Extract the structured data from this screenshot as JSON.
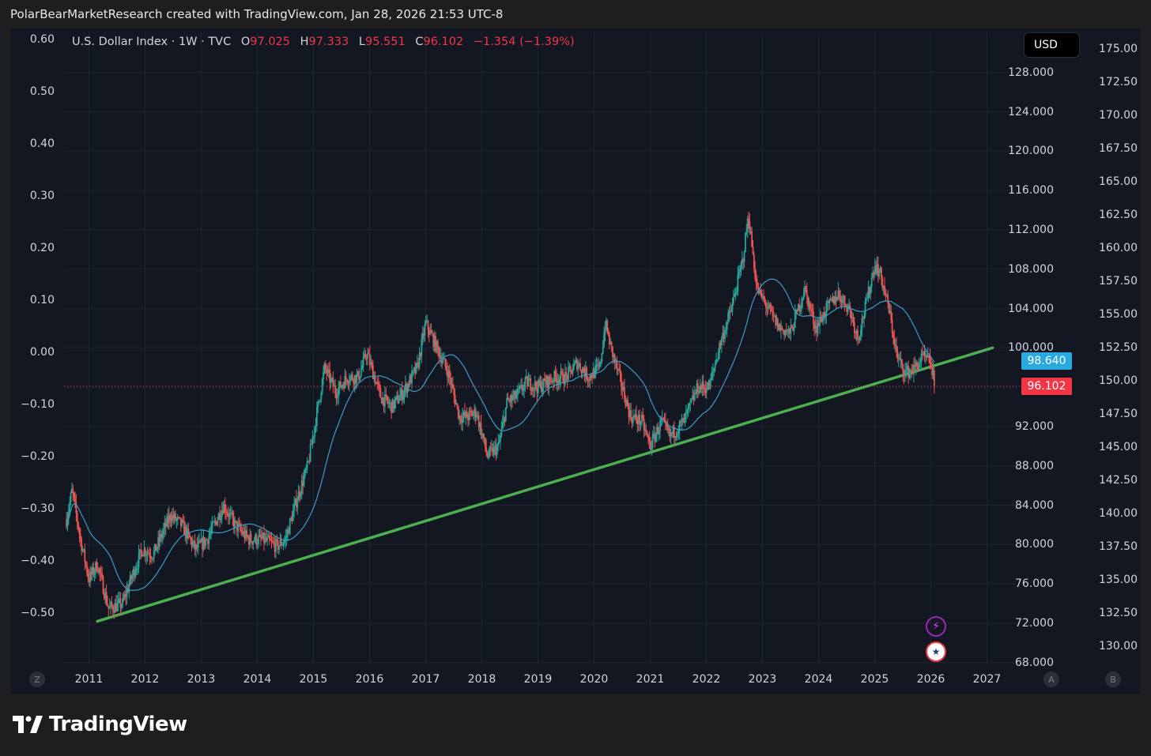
{
  "header": {
    "text": "PolarBearMarketResearch created with TradingView.com, Jan 28, 2026 21:53 UTC-8"
  },
  "legend": {
    "symbol": "U.S. Dollar Index · 1W · TVC",
    "open_label": "O",
    "open": "97.025",
    "high_label": "H",
    "high": "97.333",
    "low_label": "L",
    "low": "95.551",
    "close_label": "C",
    "close": "96.102",
    "change": "−1.354 (−1.39%)"
  },
  "currency_button": "USD",
  "axis_left": {
    "labels": [
      "0.60",
      "0.50",
      "0.40",
      "0.30",
      "0.20",
      "0.10",
      "0.00",
      "−0.10",
      "−0.20",
      "−0.30",
      "−0.40",
      "−0.50"
    ]
  },
  "axis_price": {
    "labels": [
      "128.000",
      "124.000",
      "120.000",
      "116.000",
      "112.000",
      "108.000",
      "104.000",
      "100.000",
      "92.000",
      "88.000",
      "84.000",
      "80.000",
      "76.000",
      "72.000",
      "68.000"
    ]
  },
  "axis_right": {
    "labels": [
      "175.00",
      "172.50",
      "170.00",
      "167.50",
      "165.00",
      "162.50",
      "160.00",
      "157.50",
      "155.00",
      "152.50",
      "150.00",
      "147.50",
      "145.00",
      "142.50",
      "140.00",
      "137.50",
      "135.00",
      "132.50",
      "130.00"
    ]
  },
  "axis_x": {
    "labels": [
      "2011",
      "2012",
      "2013",
      "2014",
      "2015",
      "2016",
      "2017",
      "2018",
      "2019",
      "2020",
      "2021",
      "2022",
      "2023",
      "2024",
      "2025",
      "2026",
      "2027"
    ]
  },
  "price_tags": {
    "ma_value": "98.640",
    "last_price": "96.102"
  },
  "corner_buttons": {
    "left": "Z",
    "scale_a": "A",
    "scale_b": "B"
  },
  "footer": {
    "brand": "TradingView"
  },
  "colors": {
    "up": "#26a69a",
    "down": "#ef5350",
    "ma": "#3c9cc7",
    "trend": "#4caf50",
    "ma_tag": "#29a9e0",
    "price_tag": "#f23645"
  },
  "chart_data": {
    "type": "candlestick",
    "title": "U.S. Dollar Index · 1W · TVC",
    "timeframe": "1W",
    "x_range": [
      2010.6,
      2027.4
    ],
    "ylim": [
      67.5,
      131.5
    ],
    "last_close": 96.102,
    "ma_last": 98.64,
    "anchors": [
      [
        2010.6,
        82.5
      ],
      [
        2010.7,
        85.5
      ],
      [
        2010.85,
        80.5
      ],
      [
        2011.0,
        76.5
      ],
      [
        2011.15,
        78.0
      ],
      [
        2011.35,
        73.5
      ],
      [
        2011.6,
        74.0
      ],
      [
        2011.75,
        76.5
      ],
      [
        2011.95,
        79.5
      ],
      [
        2012.15,
        79.0
      ],
      [
        2012.45,
        83.0
      ],
      [
        2012.65,
        82.0
      ],
      [
        2012.9,
        79.5
      ],
      [
        2013.1,
        80.5
      ],
      [
        2013.4,
        84.0
      ],
      [
        2013.6,
        82.0
      ],
      [
        2013.85,
        80.5
      ],
      [
        2014.1,
        80.5
      ],
      [
        2014.35,
        79.8
      ],
      [
        2014.5,
        80.5
      ],
      [
        2014.7,
        84.5
      ],
      [
        2014.9,
        88.0
      ],
      [
        2015.05,
        93.0
      ],
      [
        2015.2,
        98.0
      ],
      [
        2015.4,
        95.5
      ],
      [
        2015.6,
        97.0
      ],
      [
        2015.8,
        97.0
      ],
      [
        2015.95,
        99.5
      ],
      [
        2016.2,
        95.0
      ],
      [
        2016.4,
        94.0
      ],
      [
        2016.6,
        95.5
      ],
      [
        2016.85,
        98.0
      ],
      [
        2017.0,
        102.5
      ],
      [
        2017.2,
        100.0
      ],
      [
        2017.4,
        97.5
      ],
      [
        2017.6,
        93.0
      ],
      [
        2017.75,
        93.0
      ],
      [
        2017.9,
        93.5
      ],
      [
        2018.1,
        89.0
      ],
      [
        2018.3,
        90.0
      ],
      [
        2018.45,
        94.5
      ],
      [
        2018.6,
        95.0
      ],
      [
        2018.8,
        96.5
      ],
      [
        2019.0,
        96.0
      ],
      [
        2019.3,
        97.0
      ],
      [
        2019.5,
        97.0
      ],
      [
        2019.7,
        98.5
      ],
      [
        2019.9,
        97.0
      ],
      [
        2020.1,
        98.0
      ],
      [
        2020.2,
        102.5
      ],
      [
        2020.3,
        100.0
      ],
      [
        2020.5,
        96.0
      ],
      [
        2020.65,
        93.0
      ],
      [
        2020.85,
        92.5
      ],
      [
        2021.0,
        90.0
      ],
      [
        2021.2,
        92.5
      ],
      [
        2021.35,
        91.0
      ],
      [
        2021.6,
        92.5
      ],
      [
        2021.85,
        96.0
      ],
      [
        2022.05,
        96.0
      ],
      [
        2022.25,
        100.5
      ],
      [
        2022.45,
        104.0
      ],
      [
        2022.65,
        109.0
      ],
      [
        2022.75,
        113.5
      ],
      [
        2022.9,
        106.0
      ],
      [
        2023.1,
        104.0
      ],
      [
        2023.3,
        102.0
      ],
      [
        2023.5,
        101.5
      ],
      [
        2023.75,
        106.0
      ],
      [
        2023.95,
        102.0
      ],
      [
        2024.15,
        104.0
      ],
      [
        2024.35,
        105.5
      ],
      [
        2024.55,
        104.0
      ],
      [
        2024.7,
        101.0
      ],
      [
        2024.85,
        104.5
      ],
      [
        2025.0,
        108.5
      ],
      [
        2025.1,
        107.5
      ],
      [
        2025.25,
        104.0
      ],
      [
        2025.4,
        99.0
      ],
      [
        2025.55,
        97.5
      ],
      [
        2025.7,
        97.8
      ],
      [
        2025.85,
        99.0
      ],
      [
        2026.0,
        98.5
      ],
      [
        2026.07,
        96.1
      ]
    ],
    "trendline": {
      "start": [
        2011.15,
        72.2
      ],
      "end": [
        2027.1,
        100.0
      ]
    },
    "left_axis_range": [
      -0.55,
      0.6
    ],
    "right_axis_range": [
      130.0,
      175.0
    ]
  }
}
